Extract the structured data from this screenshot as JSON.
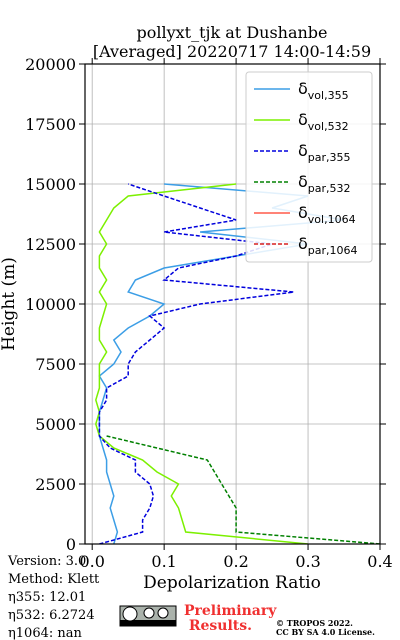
{
  "chart_data": {
    "type": "line",
    "orientation": "vertical-profile",
    "title": "pollyxt_tjk at Dushanbe",
    "subtitle": "[Averaged] 20220717 14:00-14:59",
    "xlabel": "Depolarization Ratio",
    "ylabel": "Height (m)",
    "x": [
      0,
      500,
      1000,
      1500,
      2000,
      2500,
      3000,
      3500,
      4000,
      4500,
      5000,
      5500,
      6000,
      6500,
      7000,
      7500,
      8000,
      8500,
      9000,
      9500,
      10000,
      10500,
      11000,
      11500,
      12000,
      12500,
      13000,
      13500,
      14000,
      14500,
      15000
    ],
    "series": [
      {
        "name": "δvol,355",
        "color": "#3c9ee6",
        "dashed": false,
        "values": [
          0.03,
          0.035,
          0.03,
          0.025,
          0.03,
          0.025,
          0.02,
          0.02,
          0.015,
          0.01,
          0.01,
          0.01,
          0.015,
          0.02,
          0.01,
          0.03,
          0.04,
          0.03,
          0.05,
          0.08,
          0.1,
          0.05,
          0.06,
          0.1,
          0.2,
          0.3,
          0.15,
          0.35,
          0.25,
          0.3,
          0.1
        ]
      },
      {
        "name": "δvol,532",
        "color": "#7cf000",
        "dashed": false,
        "values": [
          0.3,
          0.13,
          0.125,
          0.12,
          0.11,
          0.12,
          0.09,
          0.07,
          0.03,
          0.01,
          0.005,
          0.01,
          0.005,
          0.01,
          0.01,
          0.01,
          0.02,
          0.01,
          0.01,
          0.015,
          0.02,
          0.01,
          0.02,
          0.01,
          0.01,
          0.02,
          0.01,
          0.02,
          0.03,
          0.05,
          0.2
        ]
      },
      {
        "name": "δpar,355",
        "color": "#0000dd",
        "dashed": true,
        "values": [
          0.01,
          0.07,
          0.07,
          0.08,
          0.085,
          0.08,
          0.06,
          0.06,
          0.025,
          0.01,
          0.01,
          0.01,
          0.02,
          0.02,
          0.05,
          0.05,
          0.06,
          0.08,
          0.1,
          0.08,
          0.15,
          0.28,
          0.1,
          0.12,
          0.2,
          0.25,
          0.1,
          0.2,
          0.15,
          0.1,
          0.05
        ]
      },
      {
        "name": "δpar,532",
        "color": "#008000",
        "dashed": true,
        "values": [
          0.4,
          0.2,
          0.2,
          0.2,
          0.19,
          0.18,
          0.17,
          0.16,
          0.09,
          0.02,
          null,
          null,
          null,
          null,
          null,
          null,
          null,
          null,
          null,
          null,
          null,
          null,
          null,
          null,
          null,
          null,
          null,
          null,
          null,
          null,
          null
        ]
      },
      {
        "name": "δvol,1064",
        "color": "#ff5a4a",
        "dashed": false,
        "values": [
          null,
          null,
          null,
          null,
          null,
          null,
          null,
          null,
          null,
          null,
          null,
          null,
          null,
          null,
          null,
          null,
          null,
          null,
          null,
          null,
          null,
          null,
          null,
          null,
          null,
          null,
          null,
          null,
          null,
          null,
          null
        ]
      },
      {
        "name": "δpar,1064",
        "color": "#d62020",
        "dashed": true,
        "values": [
          null,
          null,
          null,
          null,
          null,
          null,
          null,
          null,
          null,
          null,
          null,
          null,
          null,
          null,
          null,
          null,
          null,
          null,
          null,
          null,
          null,
          null,
          null,
          null,
          null,
          null,
          null,
          null,
          null,
          null,
          null
        ]
      }
    ],
    "xlim": [
      -0.01,
      0.4
    ],
    "xticks": [
      {
        "value": 0,
        "label": "0.0"
      },
      0.1,
      0.2,
      0.3,
      0.4
    ],
    "ylim": [
      0,
      20000
    ],
    "yticks": [
      0,
      2500,
      5000,
      7500,
      10000,
      12500,
      15000,
      17500,
      20000
    ],
    "grid": true,
    "legend": "upper right",
    "notes": [
      "Version: 3.0",
      "Method: Klett",
      "η355:  12.01",
      "η532: 6.2724",
      "η1064:    nan"
    ],
    "stamp": "Preliminary Results.",
    "copyright": [
      "© TROPOS 2022.",
      "CC BY SA 4.0 License."
    ]
  }
}
